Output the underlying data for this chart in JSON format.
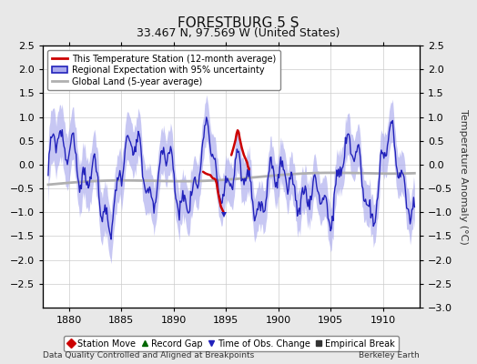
{
  "title": "FORESTBURG 5 S",
  "subtitle": "33.467 N, 97.569 W (United States)",
  "ylabel": "Temperature Anomaly (°C)",
  "xlim": [
    1877.5,
    1913.5
  ],
  "ylim": [
    -3.0,
    2.5
  ],
  "ylim_left": [
    -3.0,
    2.5
  ],
  "yticks_left": [
    -2.5,
    -2,
    -1.5,
    -1,
    -0.5,
    0,
    0.5,
    1,
    1.5,
    2,
    2.5
  ],
  "yticks_right": [
    -3,
    -2.5,
    -2,
    -1.5,
    -1,
    -0.5,
    0,
    0.5,
    1,
    1.5,
    2,
    2.5
  ],
  "xticks": [
    1880,
    1885,
    1890,
    1895,
    1900,
    1905,
    1910
  ],
  "background_color": "#e8e8e8",
  "plot_bg_color": "#ffffff",
  "grid_color": "#cccccc",
  "footer_left": "Data Quality Controlled and Aligned at Breakpoints",
  "footer_right": "Berkeley Earth",
  "legend_entries": [
    {
      "label": "This Temperature Station (12-month average)",
      "color": "#cc0000",
      "lw": 2
    },
    {
      "label": "Regional Expectation with 95% uncertainty",
      "color": "#3333cc",
      "lw": 2,
      "fill": "#aaaaee"
    },
    {
      "label": "Global Land (5-year average)",
      "color": "#aaaaaa",
      "lw": 2
    }
  ],
  "marker_legend": [
    {
      "marker": "D",
      "color": "#cc0000",
      "label": "Station Move"
    },
    {
      "marker": "^",
      "color": "#006600",
      "label": "Record Gap"
    },
    {
      "marker": "v",
      "color": "#0000cc",
      "label": "Time of Obs. Change"
    },
    {
      "marker": "s",
      "color": "#333333",
      "label": "Empirical Break"
    }
  ]
}
